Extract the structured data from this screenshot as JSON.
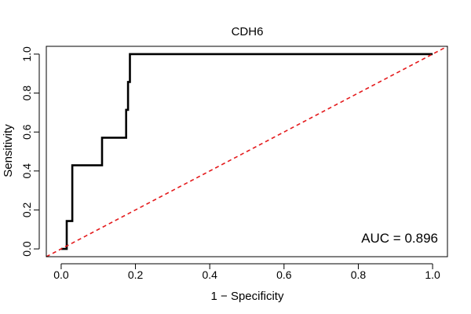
{
  "chart_data": {
    "type": "line",
    "title": "CDH6",
    "xlabel": "1 − Specificity",
    "ylabel": "Sensitivity",
    "xlim": [
      -0.04,
      1.04
    ],
    "ylim": [
      -0.04,
      1.04
    ],
    "xticks": [
      0.0,
      0.2,
      0.4,
      0.6,
      0.8,
      1.0
    ],
    "yticks": [
      0.0,
      0.2,
      0.4,
      0.6,
      0.8,
      1.0
    ],
    "xtick_labels": [
      "0.0",
      "0.2",
      "0.4",
      "0.6",
      "0.8",
      "1.0"
    ],
    "ytick_labels": [
      "0.0",
      "0.2",
      "0.4",
      "0.6",
      "0.8",
      "1.0"
    ],
    "annotation": "AUC = 0.896",
    "grid": false,
    "series": [
      {
        "name": "ROC curve",
        "color": "#000000",
        "style": "solid",
        "x": [
          0.0,
          0.015,
          0.015,
          0.03,
          0.03,
          0.11,
          0.11,
          0.175,
          0.175,
          0.18,
          0.18,
          0.185,
          0.185,
          1.0
        ],
        "y": [
          0.0,
          0.0,
          0.143,
          0.143,
          0.429,
          0.429,
          0.571,
          0.571,
          0.714,
          0.714,
          0.857,
          0.857,
          1.0,
          1.0
        ]
      },
      {
        "name": "Reference diagonal",
        "color": "#e41a1c",
        "style": "dashed",
        "x": [
          -0.04,
          1.04
        ],
        "y": [
          -0.04,
          1.04
        ]
      }
    ]
  }
}
